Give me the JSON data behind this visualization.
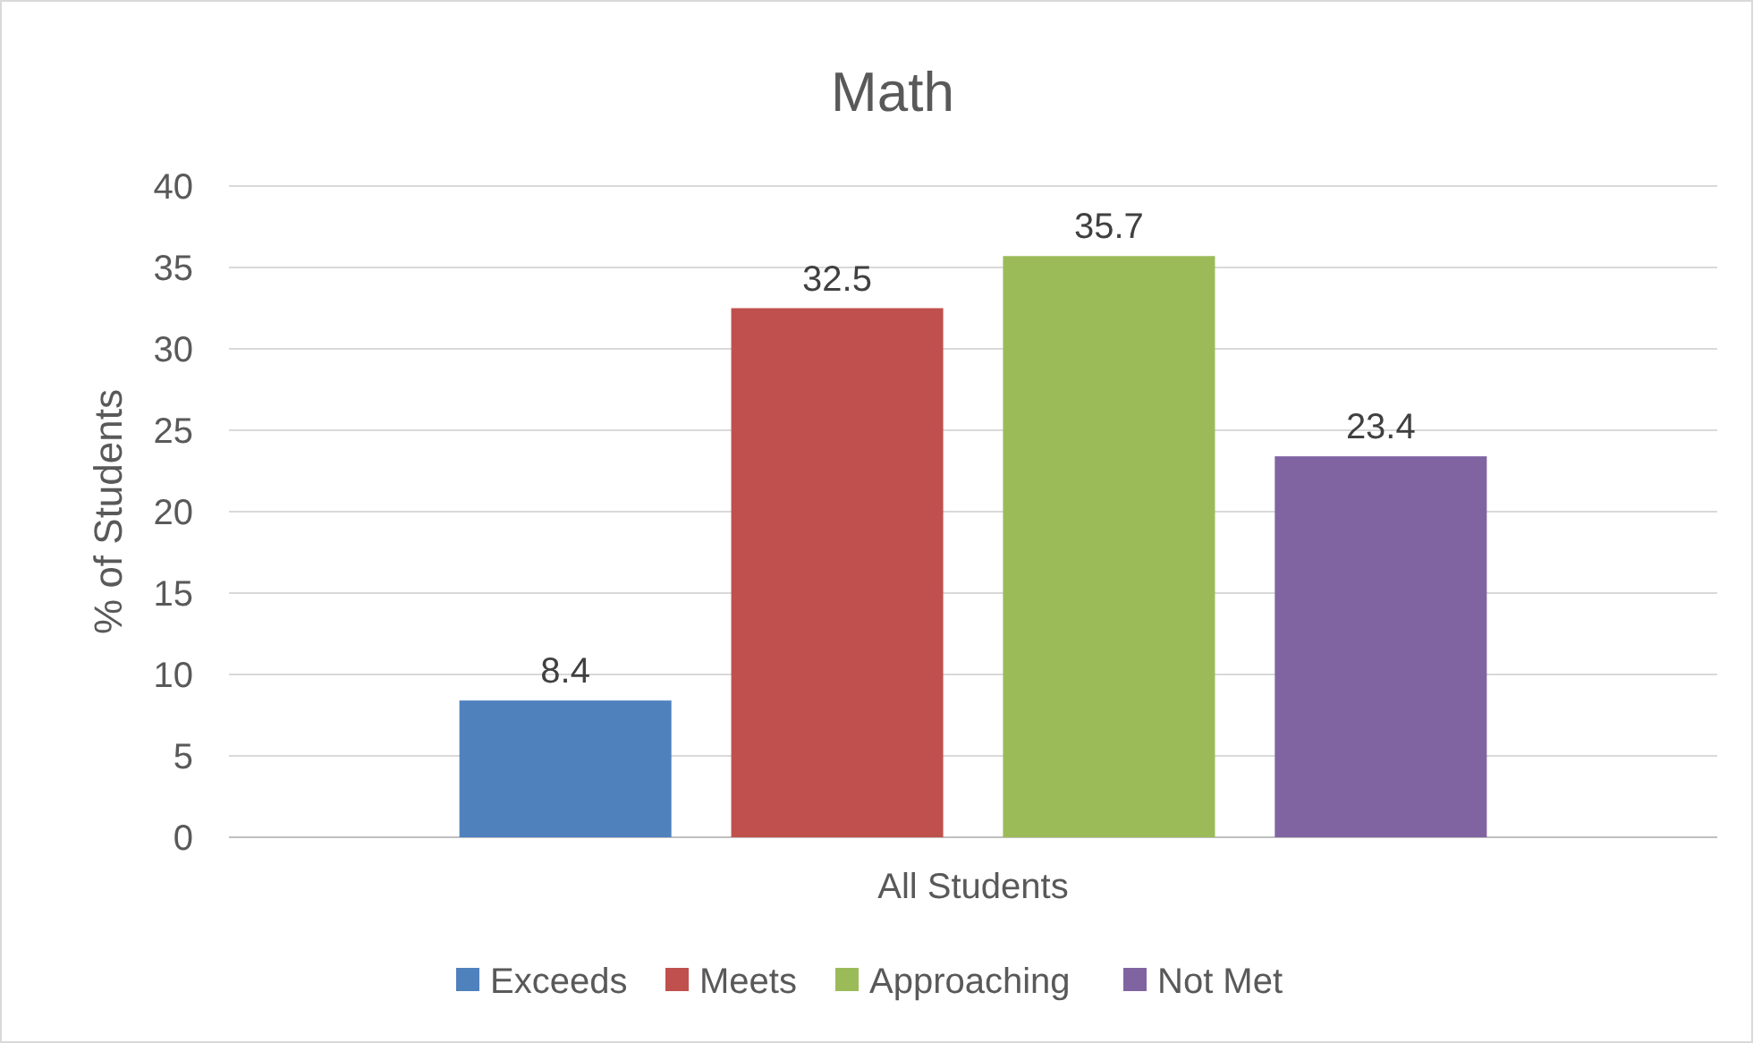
{
  "chart_data": {
    "type": "bar",
    "title": "Math",
    "ylabel": "% of Students",
    "categories": [
      "All Students"
    ],
    "series": [
      {
        "name": "Exceeds",
        "color": "#4f81bd",
        "values": [
          8.4
        ]
      },
      {
        "name": "Meets",
        "color": "#c0504d",
        "values": [
          32.5
        ]
      },
      {
        "name": "Approaching",
        "color": "#9bbb59",
        "values": [
          35.7
        ]
      },
      {
        "name": "Not Met",
        "color": "#8064a2",
        "values": [
          23.4
        ]
      }
    ],
    "ylim": [
      0,
      40
    ],
    "yticks": [
      0,
      5,
      10,
      15,
      20,
      25,
      30,
      35,
      40
    ],
    "grid": "y",
    "legend": "bottom",
    "data_labels": true
  }
}
